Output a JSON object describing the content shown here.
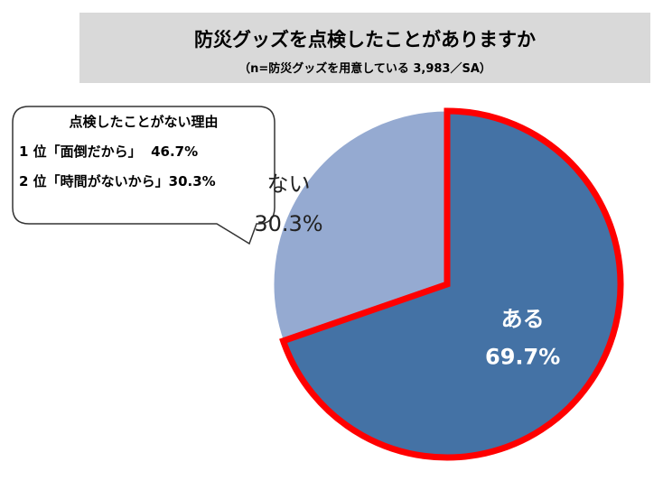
{
  "header": {
    "title": "防災グッズを点検したことがありますか",
    "subtitle": "（n=防災グッズを用意している 3,983／SA）"
  },
  "callout": {
    "heading": "点検したことがない理由",
    "items": [
      "1 位「面倒だから」  46.7%",
      "2 位「時間がないから」30.3%"
    ]
  },
  "chart_data": {
    "type": "pie",
    "title": "防災グッズを点検したことがありますか",
    "slices": [
      {
        "label": "ある",
        "value": 69.7,
        "value_label": "69.7%",
        "color": "#4472a5",
        "highlight": true
      },
      {
        "label": "ない",
        "value": 30.3,
        "value_label": "30.3%",
        "color": "#95aad1",
        "highlight": false
      }
    ],
    "start": "12 o'clock",
    "direction": "clockwise",
    "highlight_color": "#ff0000"
  }
}
